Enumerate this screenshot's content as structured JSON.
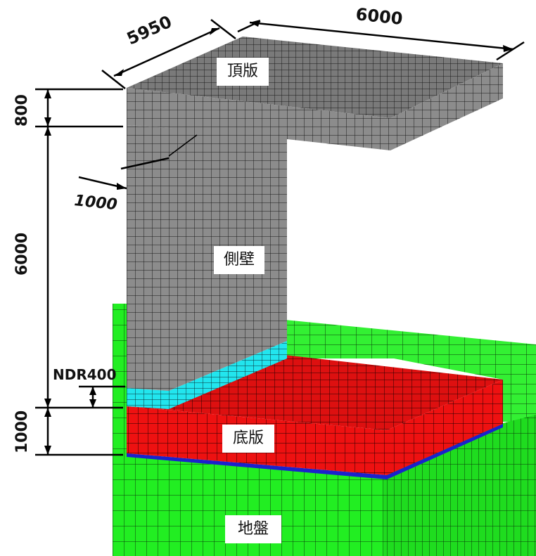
{
  "labels": {
    "top_slab": "頂版",
    "side_wall": "側壁",
    "bottom_slab": "底版",
    "ground": "地盤"
  },
  "dimensions": {
    "depth": "5950",
    "width": "6000",
    "top_thickness": "800",
    "wall_height": "6000",
    "wall_thickness": "1000",
    "bottom_thickness": "1000",
    "ndr": "NDR400"
  },
  "colors": {
    "ground": "#22ee22",
    "bottom_slab": "#ee1111",
    "ndr_layer": "#22e5ee",
    "interface": "#1a22cc",
    "concrete": "#8a8a8a",
    "mesh_line": "#111111"
  }
}
